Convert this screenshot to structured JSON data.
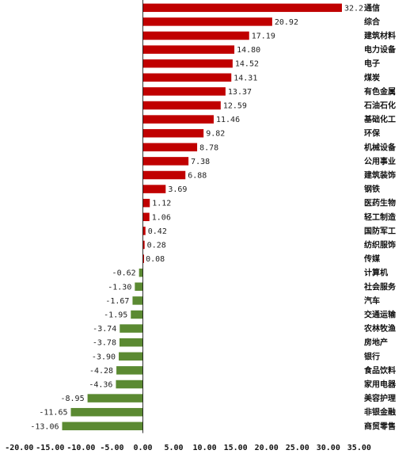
{
  "chart_data": {
    "type": "bar",
    "orientation": "horizontal",
    "categories": [
      "通信",
      "综合",
      "建筑材料",
      "电力设备",
      "电子",
      "煤炭",
      "有色金属",
      "石油石化",
      "基础化工",
      "环保",
      "机械设备",
      "公用事业",
      "建筑装饰",
      "钢铁",
      "医药生物",
      "轻工制造",
      "国防军工",
      "纺织服饰",
      "传媒",
      "计算机",
      "社会服务",
      "汽车",
      "交通运输",
      "农林牧渔",
      "房地产",
      "银行",
      "食品饮料",
      "家用电器",
      "美容护理",
      "非银金融",
      "商贸零售"
    ],
    "values": [
      32.2,
      20.92,
      17.19,
      14.8,
      14.52,
      14.31,
      13.37,
      12.59,
      11.46,
      9.82,
      8.78,
      7.38,
      6.88,
      3.69,
      1.12,
      1.06,
      0.42,
      0.28,
      0.08,
      -0.62,
      -1.3,
      -1.67,
      -1.95,
      -3.74,
      -3.78,
      -3.9,
      -4.28,
      -4.36,
      -8.95,
      -11.65,
      -13.06
    ],
    "value_labels": [
      "32.2",
      "20.92",
      "17.19",
      "14.80",
      "14.52",
      "14.31",
      "13.37",
      "12.59",
      "11.46",
      "9.82",
      "8.78",
      "7.38",
      "6.88",
      "3.69",
      "1.12",
      "1.06",
      "0.42",
      "0.28",
      "0.08",
      "-0.62",
      "-1.30",
      "-1.67",
      "-1.95",
      "-3.74",
      "-3.78",
      "-3.90",
      "-4.28",
      "-4.36",
      "-8.95",
      "-11.65",
      "-13.06"
    ],
    "xlim": [
      -20,
      35
    ],
    "xticks": [
      -20,
      -15,
      -10,
      -5,
      0,
      5,
      10,
      15,
      20,
      25,
      30,
      35
    ],
    "xtick_labels": [
      "-20.00",
      "-15.00",
      "-10.00",
      "-5.00",
      "0.00",
      "5.00",
      "10.00",
      "15.00",
      "20.00",
      "25.00",
      "30.00",
      "35.00"
    ],
    "title": "",
    "xlabel": "",
    "ylabel": "",
    "grid": false,
    "legend": "none",
    "colors": {
      "positive": "#c00000",
      "negative": "#5b8a32",
      "axis": "#000000"
    }
  }
}
